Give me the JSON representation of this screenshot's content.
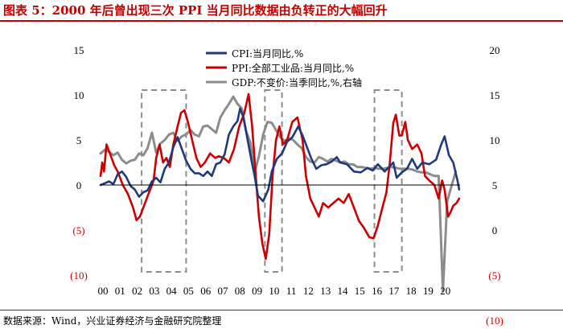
{
  "page": {
    "title": "图表 5：2000 年后曾出现三次 PPI 当月同比数据由负转正的大幅回升",
    "source": "数据来源：Wind，兴业证券经济与金融研究院整理"
  },
  "chart_data": {
    "type": "line",
    "title": "图表 5：2000 年后曾出现三次 PPI 当月同比数据由负转正的大幅回升",
    "x_tick_labels": [
      "00",
      "01",
      "02",
      "03",
      "04",
      "05",
      "06",
      "07",
      "08",
      "09",
      "10",
      "11",
      "12",
      "13",
      "14",
      "15",
      "16",
      "17",
      "18",
      "19",
      "20"
    ],
    "left_axis": {
      "ylim": [
        -10,
        15
      ],
      "tick_labels": [
        "15",
        "10",
        "5",
        "0",
        "(5)",
        "(10)"
      ],
      "tick_values": [
        15,
        10,
        5,
        0,
        -5,
        -10
      ]
    },
    "right_axis": {
      "ylim": [
        -5,
        20
      ],
      "tick_labels": [
        "20",
        "15",
        "10",
        "5",
        "0",
        "(5)",
        "(10)"
      ],
      "tick_values": [
        20,
        15,
        10,
        5,
        0,
        -5,
        -10
      ]
    },
    "highlight_periods": [
      {
        "label": "2002–2004",
        "x_start": 2002.4,
        "x_end": 2005.0
      },
      {
        "label": "2009–2010",
        "x_start": 2009.6,
        "x_end": 2010.6
      },
      {
        "label": "2016–2017",
        "x_start": 2016.0,
        "x_end": 2017.6
      }
    ],
    "series": [
      {
        "name": "CPI:当月同比,%",
        "axis": "left",
        "color": "#1f3a7a",
        "points": [
          [
            2000.0,
            0.0
          ],
          [
            2000.25,
            0.2
          ],
          [
            2000.5,
            0.4
          ],
          [
            2000.75,
            0.1
          ],
          [
            2001.0,
            1.2
          ],
          [
            2001.25,
            1.5
          ],
          [
            2001.5,
            0.9
          ],
          [
            2001.75,
            -0.1
          ],
          [
            2002.0,
            -0.5
          ],
          [
            2002.25,
            -1.3
          ],
          [
            2002.5,
            -0.8
          ],
          [
            2002.75,
            -0.6
          ],
          [
            2003.0,
            0.4
          ],
          [
            2003.25,
            0.8
          ],
          [
            2003.5,
            0.3
          ],
          [
            2003.75,
            1.8
          ],
          [
            2004.0,
            2.5
          ],
          [
            2004.25,
            4.2
          ],
          [
            2004.5,
            5.3
          ],
          [
            2004.75,
            4.0
          ],
          [
            2005.0,
            2.7
          ],
          [
            2005.25,
            1.8
          ],
          [
            2005.5,
            1.3
          ],
          [
            2005.75,
            1.3
          ],
          [
            2006.0,
            1.0
          ],
          [
            2006.25,
            1.5
          ],
          [
            2006.5,
            1.0
          ],
          [
            2006.75,
            2.3
          ],
          [
            2007.0,
            2.5
          ],
          [
            2007.25,
            3.4
          ],
          [
            2007.5,
            5.6
          ],
          [
            2007.75,
            6.5
          ],
          [
            2008.0,
            7.1
          ],
          [
            2008.15,
            8.5
          ],
          [
            2008.35,
            7.5
          ],
          [
            2008.6,
            4.9
          ],
          [
            2008.85,
            2.4
          ],
          [
            2009.0,
            1.0
          ],
          [
            2009.2,
            -1.2
          ],
          [
            2009.5,
            -1.8
          ],
          [
            2009.8,
            -0.5
          ],
          [
            2010.0,
            1.5
          ],
          [
            2010.3,
            2.9
          ],
          [
            2010.6,
            3.5
          ],
          [
            2010.9,
            4.8
          ],
          [
            2011.2,
            5.3
          ],
          [
            2011.55,
            6.5
          ],
          [
            2011.8,
            5.5
          ],
          [
            2012.0,
            4.5
          ],
          [
            2012.3,
            3.0
          ],
          [
            2012.6,
            1.8
          ],
          [
            2012.9,
            2.2
          ],
          [
            2013.2,
            2.3
          ],
          [
            2013.5,
            2.6
          ],
          [
            2013.8,
            3.1
          ],
          [
            2014.0,
            2.5
          ],
          [
            2014.4,
            2.3
          ],
          [
            2014.8,
            1.5
          ],
          [
            2015.2,
            1.4
          ],
          [
            2015.6,
            1.9
          ],
          [
            2015.9,
            1.6
          ],
          [
            2016.2,
            2.3
          ],
          [
            2016.6,
            1.5
          ],
          [
            2016.9,
            2.1
          ],
          [
            2017.1,
            2.5
          ],
          [
            2017.3,
            0.8
          ],
          [
            2017.6,
            1.4
          ],
          [
            2017.9,
            1.8
          ],
          [
            2018.2,
            2.9
          ],
          [
            2018.5,
            1.8
          ],
          [
            2018.8,
            2.5
          ],
          [
            2019.2,
            2.3
          ],
          [
            2019.6,
            2.8
          ],
          [
            2019.9,
            4.5
          ],
          [
            2020.1,
            5.4
          ],
          [
            2020.35,
            3.3
          ],
          [
            2020.6,
            2.5
          ],
          [
            2020.85,
            0.5
          ],
          [
            2020.95,
            -0.5
          ]
        ]
      },
      {
        "name": "PPI:全部工业品:当月同比,%",
        "axis": "left",
        "color": "#cc0000",
        "points": [
          [
            2000.0,
            1.0
          ],
          [
            2000.1,
            2.5
          ],
          [
            2000.2,
            1.5
          ],
          [
            2000.35,
            4.5
          ],
          [
            2000.55,
            3.5
          ],
          [
            2000.8,
            2.2
          ],
          [
            2001.0,
            1.5
          ],
          [
            2001.3,
            0.0
          ],
          [
            2001.6,
            -1.0
          ],
          [
            2001.9,
            -2.5
          ],
          [
            2002.1,
            -3.9
          ],
          [
            2002.3,
            -3.5
          ],
          [
            2002.6,
            -2.0
          ],
          [
            2002.9,
            -0.5
          ],
          [
            2003.1,
            0.5
          ],
          [
            2003.25,
            3.0
          ],
          [
            2003.45,
            4.5
          ],
          [
            2003.65,
            2.5
          ],
          [
            2003.85,
            3.0
          ],
          [
            2004.05,
            2.0
          ],
          [
            2004.25,
            4.5
          ],
          [
            2004.5,
            6.5
          ],
          [
            2004.7,
            8.0
          ],
          [
            2004.9,
            8.3
          ],
          [
            2005.1,
            7.0
          ],
          [
            2005.35,
            5.0
          ],
          [
            2005.6,
            3.0
          ],
          [
            2005.85,
            2.0
          ],
          [
            2006.1,
            2.5
          ],
          [
            2006.4,
            3.5
          ],
          [
            2006.7,
            3.0
          ],
          [
            2006.9,
            3.2
          ],
          [
            2007.2,
            3.0
          ],
          [
            2007.5,
            2.5
          ],
          [
            2007.8,
            4.0
          ],
          [
            2008.1,
            6.5
          ],
          [
            2008.4,
            8.0
          ],
          [
            2008.65,
            10.1
          ],
          [
            2008.85,
            6.6
          ],
          [
            2009.05,
            1.5
          ],
          [
            2009.25,
            -3.5
          ],
          [
            2009.45,
            -6.5
          ],
          [
            2009.65,
            -8.2
          ],
          [
            2009.85,
            -5.5
          ],
          [
            2010.05,
            1.0
          ],
          [
            2010.25,
            5.0
          ],
          [
            2010.45,
            6.5
          ],
          [
            2010.65,
            4.5
          ],
          [
            2010.9,
            5.0
          ],
          [
            2011.2,
            7.0
          ],
          [
            2011.5,
            7.5
          ],
          [
            2011.8,
            5.0
          ],
          [
            2012.0,
            1.0
          ],
          [
            2012.25,
            -1.5
          ],
          [
            2012.5,
            -2.5
          ],
          [
            2012.75,
            -3.5
          ],
          [
            2013.0,
            -2.0
          ],
          [
            2013.3,
            -2.5
          ],
          [
            2013.6,
            -2.0
          ],
          [
            2013.9,
            -1.5
          ],
          [
            2014.2,
            -2.0
          ],
          [
            2014.5,
            -1.0
          ],
          [
            2014.8,
            -2.5
          ],
          [
            2015.1,
            -4.0
          ],
          [
            2015.4,
            -4.8
          ],
          [
            2015.7,
            -5.8
          ],
          [
            2015.95,
            -5.9
          ],
          [
            2016.2,
            -4.5
          ],
          [
            2016.45,
            -2.6
          ],
          [
            2016.7,
            -0.8
          ],
          [
            2016.9,
            2.5
          ],
          [
            2017.1,
            6.9
          ],
          [
            2017.25,
            7.8
          ],
          [
            2017.45,
            5.5
          ],
          [
            2017.6,
            5.5
          ],
          [
            2017.8,
            7.0
          ],
          [
            2017.95,
            5.0
          ],
          [
            2018.2,
            4.0
          ],
          [
            2018.5,
            4.5
          ],
          [
            2018.75,
            3.5
          ],
          [
            2018.95,
            1.0
          ],
          [
            2019.2,
            0.5
          ],
          [
            2019.5,
            0.0
          ],
          [
            2019.75,
            -1.5
          ],
          [
            2019.95,
            0.5
          ],
          [
            2020.1,
            -0.5
          ],
          [
            2020.3,
            -3.5
          ],
          [
            2020.45,
            -3.0
          ],
          [
            2020.6,
            -2.3
          ],
          [
            2020.8,
            -2.0
          ],
          [
            2020.95,
            -1.5
          ]
        ]
      },
      {
        "name": "GDP:不变价:当季同比,%,右轴",
        "axis": "right",
        "color": "#8c8c8c",
        "points": [
          [
            2000.0,
            8.5
          ],
          [
            2000.25,
            8.9
          ],
          [
            2000.5,
            8.7
          ],
          [
            2000.75,
            8.3
          ],
          [
            2001.0,
            8.6
          ],
          [
            2001.25,
            7.8
          ],
          [
            2001.5,
            7.4
          ],
          [
            2001.75,
            7.7
          ],
          [
            2002.0,
            7.8
          ],
          [
            2002.25,
            8.5
          ],
          [
            2002.5,
            8.3
          ],
          [
            2002.75,
            9.1
          ],
          [
            2003.0,
            10.8
          ],
          [
            2003.25,
            8.6
          ],
          [
            2003.5,
            9.6
          ],
          [
            2003.75,
            10.0
          ],
          [
            2004.0,
            10.6
          ],
          [
            2004.25,
            10.8
          ],
          [
            2004.5,
            9.9
          ],
          [
            2004.75,
            10.4
          ],
          [
            2005.0,
            10.6
          ],
          [
            2005.25,
            11.1
          ],
          [
            2005.5,
            10.6
          ],
          [
            2005.75,
            10.4
          ],
          [
            2006.0,
            11.5
          ],
          [
            2006.25,
            11.6
          ],
          [
            2006.5,
            11.2
          ],
          [
            2006.75,
            10.8
          ],
          [
            2007.0,
            12.5
          ],
          [
            2007.25,
            13.3
          ],
          [
            2007.5,
            14.0
          ],
          [
            2007.75,
            14.8
          ],
          [
            2008.0,
            14.0
          ],
          [
            2008.25,
            13.5
          ],
          [
            2008.5,
            11.0
          ],
          [
            2008.75,
            9.7
          ],
          [
            2009.0,
            6.4
          ],
          [
            2009.25,
            8.2
          ],
          [
            2009.5,
            10.6
          ],
          [
            2009.75,
            12.0
          ],
          [
            2010.0,
            11.9
          ],
          [
            2010.25,
            11.1
          ],
          [
            2010.5,
            10.3
          ],
          [
            2010.75,
            9.9
          ],
          [
            2011.0,
            10.2
          ],
          [
            2011.25,
            10.0
          ],
          [
            2011.5,
            9.5
          ],
          [
            2011.75,
            9.1
          ],
          [
            2012.0,
            8.1
          ],
          [
            2012.25,
            7.6
          ],
          [
            2012.5,
            7.5
          ],
          [
            2012.75,
            8.1
          ],
          [
            2013.0,
            7.9
          ],
          [
            2013.25,
            7.6
          ],
          [
            2013.5,
            7.9
          ],
          [
            2013.75,
            7.7
          ],
          [
            2014.0,
            7.5
          ],
          [
            2014.25,
            7.6
          ],
          [
            2014.5,
            7.3
          ],
          [
            2014.75,
            7.3
          ],
          [
            2015.0,
            7.0
          ],
          [
            2015.25,
            7.0
          ],
          [
            2015.5,
            6.9
          ],
          [
            2015.75,
            6.8
          ],
          [
            2016.0,
            6.9
          ],
          [
            2016.25,
            6.8
          ],
          [
            2016.5,
            6.8
          ],
          [
            2016.75,
            6.9
          ],
          [
            2017.0,
            7.0
          ],
          [
            2017.25,
            6.9
          ],
          [
            2017.5,
            6.8
          ],
          [
            2017.75,
            6.8
          ],
          [
            2018.0,
            6.8
          ],
          [
            2018.25,
            6.7
          ],
          [
            2018.5,
            6.5
          ],
          [
            2018.75,
            6.4
          ],
          [
            2019.0,
            6.4
          ],
          [
            2019.25,
            6.2
          ],
          [
            2019.5,
            6.0
          ],
          [
            2019.75,
            6.0
          ],
          [
            2020.0,
            -6.8
          ],
          [
            2020.25,
            3.2
          ],
          [
            2020.5,
            4.9
          ],
          [
            2020.75,
            6.5
          ]
        ]
      }
    ]
  }
}
